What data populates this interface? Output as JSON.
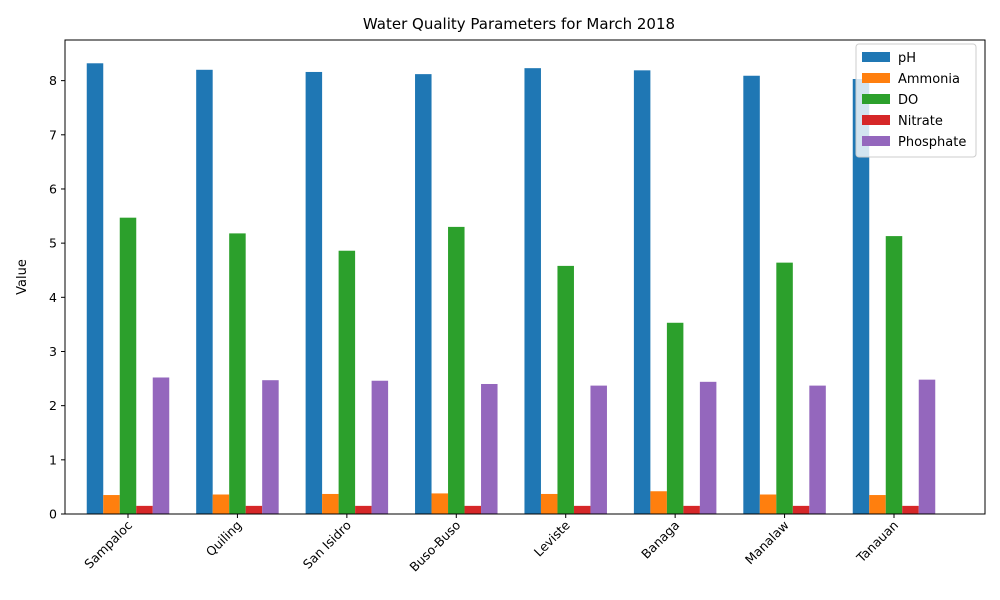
{
  "chart_data": {
    "type": "bar",
    "title": "Water Quality Parameters for March 2018",
    "xlabel": "",
    "ylabel": "Value",
    "ylim": [
      0,
      8.75
    ],
    "yticks": [
      "0",
      "1",
      "2",
      "3",
      "4",
      "5",
      "6",
      "7",
      "8"
    ],
    "legend_position": "top-right",
    "categories": [
      "Sampaloc",
      "Quiling",
      "San Isidro",
      "Buso-Buso",
      "Leviste",
      "Banaga",
      "Manalaw",
      "Tanauan"
    ],
    "series": [
      {
        "name": "pH",
        "color": "#1f77b4",
        "values": [
          8.32,
          8.2,
          8.16,
          8.12,
          8.23,
          8.19,
          8.09,
          8.03
        ]
      },
      {
        "name": "Ammonia",
        "color": "#ff7f0e",
        "values": [
          0.35,
          0.36,
          0.37,
          0.38,
          0.37,
          0.42,
          0.36,
          0.35
        ]
      },
      {
        "name": "DO",
        "color": "#2ca02c",
        "values": [
          5.47,
          5.18,
          4.86,
          5.3,
          4.58,
          3.53,
          4.64,
          5.13
        ]
      },
      {
        "name": "Nitrate",
        "color": "#d62728",
        "values": [
          0.15,
          0.15,
          0.15,
          0.15,
          0.15,
          0.15,
          0.15,
          0.15
        ]
      },
      {
        "name": "Phosphate",
        "color": "#9467bd",
        "values": [
          2.52,
          2.47,
          2.46,
          2.4,
          2.37,
          2.44,
          2.37,
          2.48
        ]
      }
    ]
  }
}
